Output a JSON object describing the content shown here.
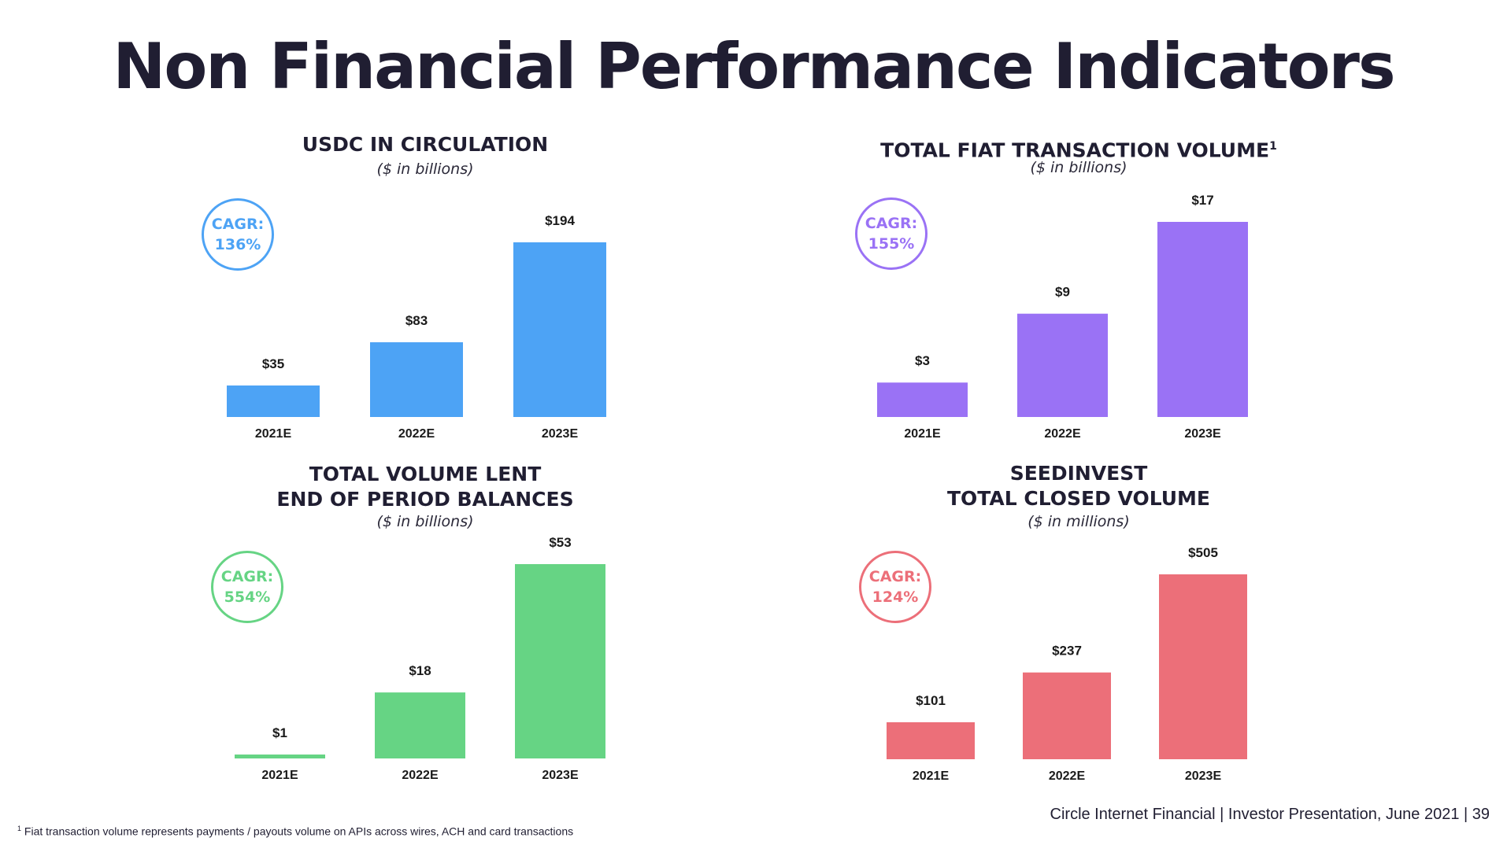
{
  "title": "Non Financial Performance Indicators",
  "footer": {
    "presentation": "Circle Internet Financial | Investor Presentation, June 2021 | 39"
  },
  "footnote": {
    "marker": "1",
    "text": "Fiat transaction volume represents payments / payouts volume on APIs across wires, ACH and card transactions"
  },
  "panels": [
    {
      "title": "USDC IN CIRCULATION",
      "footnote_marker": "",
      "subtitle": "($ in billions)",
      "cagr": {
        "label": "CAGR:",
        "value": "136%"
      },
      "color": "#4da3f5"
    },
    {
      "title": "TOTAL FIAT TRANSACTION VOLUME",
      "footnote_marker": "1",
      "subtitle": "($ in billions)",
      "cagr": {
        "label": "CAGR:",
        "value": "155%"
      },
      "color": "#9a72f5"
    },
    {
      "title": "TOTAL VOLUME LENT\nEND OF PERIOD BALANCES",
      "footnote_marker": "",
      "subtitle": "($ in billions)",
      "cagr": {
        "label": "CAGR:",
        "value": "554%"
      },
      "color": "#66d484"
    },
    {
      "title": "SEEDINVEST\nTOTAL CLOSED VOLUME",
      "footnote_marker": "",
      "subtitle": "($ in millions)",
      "cagr": {
        "label": "CAGR:",
        "value": "124%"
      },
      "color": "#ec6f79"
    }
  ],
  "chart_data": [
    {
      "type": "bar",
      "title": "USDC IN CIRCULATION",
      "ylabel": "($ in billions)",
      "categories": [
        "2021E",
        "2022E",
        "2023E"
      ],
      "values": [
        35,
        83,
        194
      ],
      "data_labels": [
        "$35",
        "$83",
        "$194"
      ],
      "ylim": [
        0,
        194
      ],
      "grid": false,
      "color": "#4da3f5"
    },
    {
      "type": "bar",
      "title": "TOTAL FIAT TRANSACTION VOLUME",
      "ylabel": "($ in billions)",
      "categories": [
        "2021E",
        "2022E",
        "2023E"
      ],
      "values": [
        3,
        9,
        17
      ],
      "data_labels": [
        "$3",
        "$9",
        "$17"
      ],
      "ylim": [
        0,
        17
      ],
      "grid": false,
      "color": "#9a72f5"
    },
    {
      "type": "bar",
      "title": "TOTAL VOLUME LENT END OF PERIOD BALANCES",
      "ylabel": "($ in billions)",
      "categories": [
        "2021E",
        "2022E",
        "2023E"
      ],
      "values": [
        1,
        18,
        53
      ],
      "data_labels": [
        "$1",
        "$18",
        "$53"
      ],
      "ylim": [
        0,
        53
      ],
      "grid": false,
      "color": "#66d484"
    },
    {
      "type": "bar",
      "title": "SEEDINVEST TOTAL CLOSED VOLUME",
      "ylabel": "($ in millions)",
      "categories": [
        "2021E",
        "2022E",
        "2023E"
      ],
      "values": [
        101,
        237,
        505
      ],
      "data_labels": [
        "$101",
        "$237",
        "$505"
      ],
      "ylim": [
        0,
        505
      ],
      "grid": false,
      "color": "#ec6f79"
    }
  ]
}
